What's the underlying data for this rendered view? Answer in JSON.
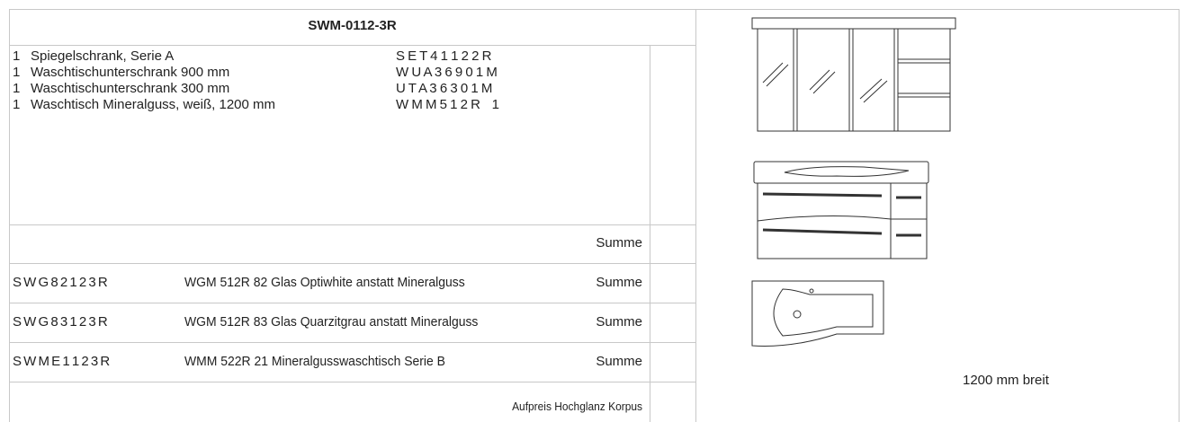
{
  "header": {
    "title": "SWM-0112-3R"
  },
  "items": [
    {
      "qty": "1",
      "name": "Spiegelschrank, Serie A",
      "code": "S E T 4 1 1 2 2 R"
    },
    {
      "qty": "1",
      "name": "Waschtischunterschrank 900 mm",
      "code": "W U A 3 6 9 0 1 M"
    },
    {
      "qty": "1",
      "name": "Waschtischunterschrank 300 mm",
      "code": "U T A 3 6 3 0 1 M"
    },
    {
      "qty": "1",
      "name": "Waschtisch Mineralguss, weiß, 1200 mm",
      "code": "W M M 5 1 2 R    1"
    }
  ],
  "sum_label": "Summe",
  "options": [
    {
      "code": "S W G 8 2 1 2 3 R",
      "description": "WGM 512R 82 Glas Optiwhite anstatt Mineralguss",
      "sum_label": "Summe"
    },
    {
      "code": "S W G 8 3 1 2 3 R",
      "description": "WGM 512R 83 Glas Quarzitgrau anstatt Mineralguss",
      "sum_label": "Summe"
    },
    {
      "code": "S W M E 1 1 2 3 R",
      "description": "WMM 522R 21 Mineralgusswaschtisch Serie B",
      "sum_label": "Summe"
    }
  ],
  "surcharge": "Aufpreis Hochglanz Korpus",
  "width_note": "1200 mm breit"
}
